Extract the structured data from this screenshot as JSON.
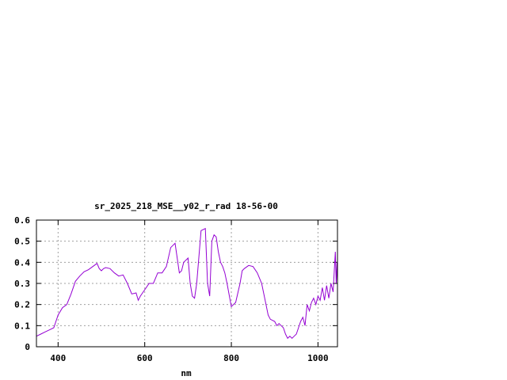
{
  "chart_data": {
    "type": "line",
    "title": "sr_2025_218_MSE__y02_r_rad 18-56-00",
    "xlabel": "nm",
    "ylabel": "",
    "xlim": [
      350,
      1045
    ],
    "ylim": [
      0,
      0.6
    ],
    "x_ticks": [
      400,
      600,
      800,
      1000
    ],
    "y_ticks": [
      0,
      0.1,
      0.2,
      0.3,
      0.4,
      0.5,
      0.6
    ],
    "y_tick_labels": [
      "0",
      "0.1",
      "0.2",
      "0.3",
      "0.4",
      "0.5",
      "0.6"
    ],
    "grid": true,
    "line_color": "#9400D3",
    "series": [
      {
        "x": [
          350,
          360,
          370,
          380,
          390,
          400,
          410,
          420,
          430,
          440,
          450,
          460,
          470,
          480,
          490,
          495,
          500,
          505,
          510,
          520,
          530,
          540,
          550,
          560,
          570,
          580,
          585,
          590,
          600,
          610,
          620,
          630,
          640,
          650,
          660,
          670,
          680,
          685,
          690,
          700,
          705,
          710,
          715,
          720,
          730,
          740,
          745,
          750,
          755,
          760,
          765,
          770,
          775,
          780,
          785,
          790,
          800,
          810,
          820,
          825,
          830,
          840,
          850,
          860,
          870,
          880,
          885,
          890,
          900,
          905,
          910,
          915,
          920,
          925,
          930,
          935,
          940,
          945,
          950,
          955,
          960,
          965,
          970,
          975,
          980,
          985,
          990,
          995,
          1000,
          1005,
          1010,
          1015,
          1020,
          1025,
          1030,
          1035,
          1040,
          1042,
          1044,
          1045
        ],
        "y": [
          0.05,
          0.06,
          0.07,
          0.08,
          0.09,
          0.15,
          0.185,
          0.2,
          0.25,
          0.31,
          0.335,
          0.355,
          0.365,
          0.38,
          0.395,
          0.37,
          0.36,
          0.37,
          0.375,
          0.37,
          0.35,
          0.335,
          0.34,
          0.3,
          0.25,
          0.255,
          0.22,
          0.24,
          0.27,
          0.3,
          0.3,
          0.35,
          0.35,
          0.38,
          0.47,
          0.49,
          0.35,
          0.36,
          0.4,
          0.42,
          0.3,
          0.24,
          0.23,
          0.3,
          0.55,
          0.56,
          0.3,
          0.24,
          0.5,
          0.53,
          0.52,
          0.45,
          0.4,
          0.38,
          0.35,
          0.3,
          0.19,
          0.21,
          0.3,
          0.36,
          0.37,
          0.385,
          0.38,
          0.35,
          0.3,
          0.2,
          0.15,
          0.13,
          0.12,
          0.1,
          0.11,
          0.1,
          0.09,
          0.06,
          0.04,
          0.05,
          0.04,
          0.05,
          0.06,
          0.09,
          0.12,
          0.14,
          0.1,
          0.2,
          0.17,
          0.21,
          0.23,
          0.2,
          0.24,
          0.22,
          0.28,
          0.22,
          0.29,
          0.23,
          0.3,
          0.26,
          0.45,
          0.3,
          0.4,
          0.3
        ]
      }
    ]
  }
}
